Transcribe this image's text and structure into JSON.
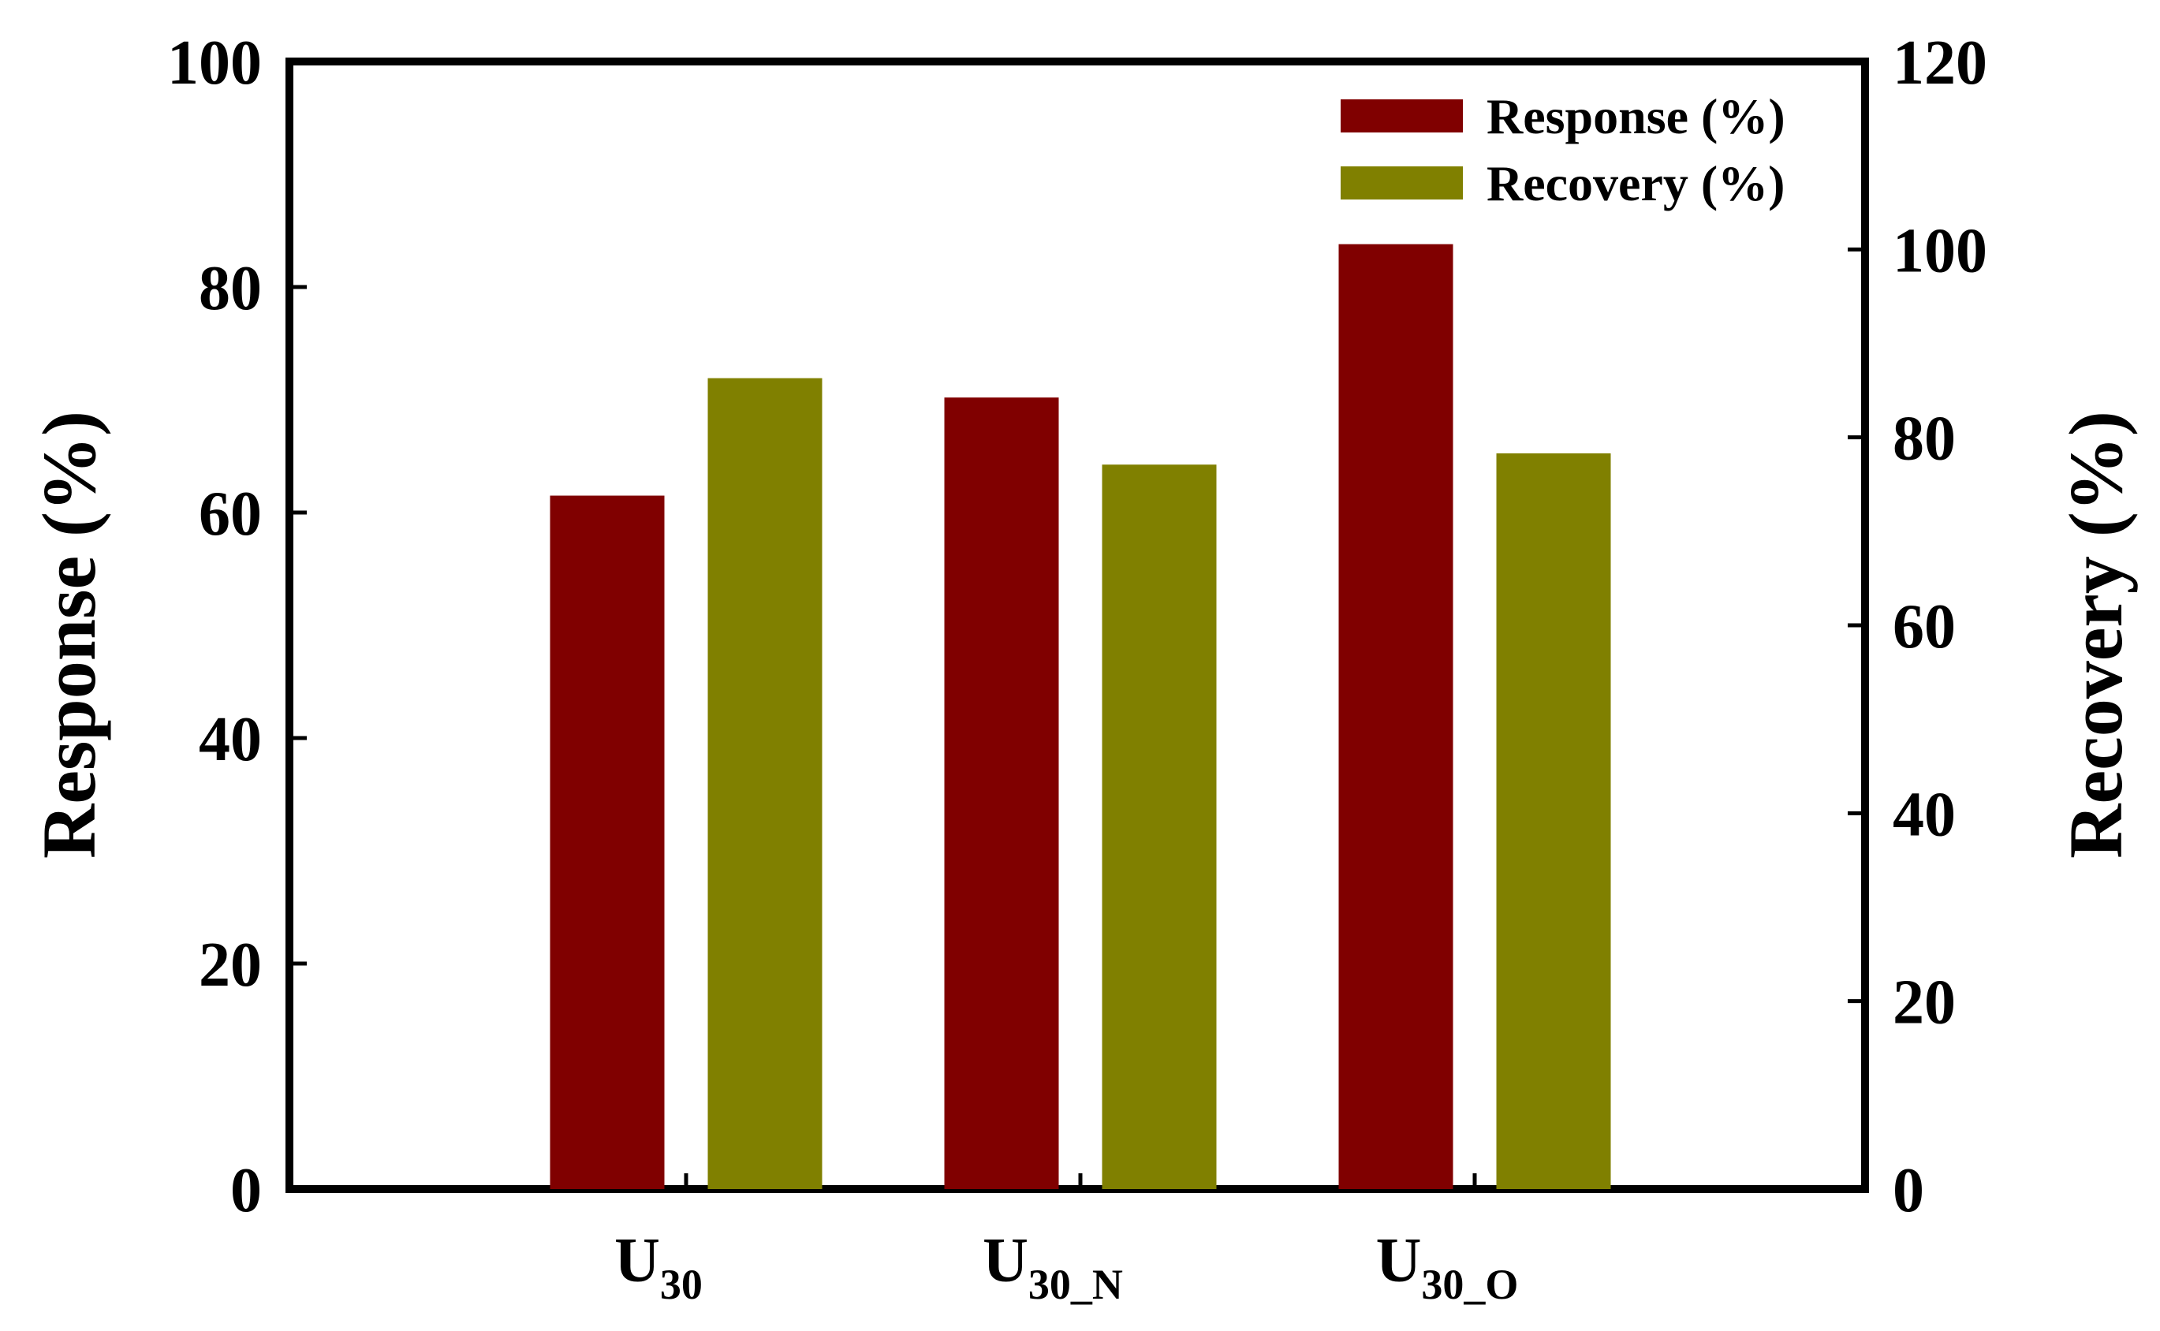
{
  "chart_data": {
    "type": "bar",
    "categories": [
      {
        "main": "U",
        "sub": "30"
      },
      {
        "main": "U",
        "sub": "30_N"
      },
      {
        "main": "U",
        "sub": "30_O"
      }
    ],
    "series": [
      {
        "name": "Response (%)",
        "axis": "left",
        "color": "#800000",
        "values": [
          61.5,
          70.2,
          83.8
        ]
      },
      {
        "name": "Recovery (%)",
        "axis": "right",
        "color": "#808000",
        "values": [
          86.3,
          77.1,
          78.3
        ]
      }
    ],
    "ylabel": "Response (%)",
    "ylabel_right": "Recovery (%)",
    "ylim": [
      0,
      100
    ],
    "ylim_right": [
      0,
      120
    ],
    "yticks": [
      "0",
      "20",
      "40",
      "60",
      "80",
      "100"
    ],
    "yticks_right": [
      "0",
      "20",
      "40",
      "60",
      "80",
      "100",
      "120"
    ],
    "legend_placement": "top-right",
    "grid": false
  }
}
